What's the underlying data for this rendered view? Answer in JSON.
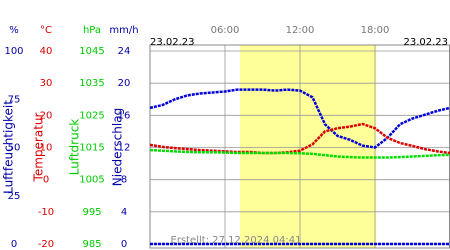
{
  "chart_data": {
    "type": "line",
    "date_start": "23.02.23",
    "date_end": "23.02.23",
    "footer": "Erstellt: 27.12.2024 04:41",
    "xlim": [
      0,
      24
    ],
    "xticks": [
      {
        "value": 6,
        "label": "06:00"
      },
      {
        "value": 12,
        "label": "12:00"
      },
      {
        "value": 18,
        "label": "18:00"
      }
    ],
    "daylight": [
      7.2,
      18.1
    ],
    "grid": true,
    "x": [
      0,
      1,
      2,
      3,
      4,
      5,
      6,
      7,
      8,
      9,
      10,
      11,
      12,
      13,
      14,
      15,
      16,
      17,
      18,
      19,
      20,
      21,
      22,
      23,
      24
    ],
    "y_axes": [
      {
        "unit": "%",
        "color": "#0000aa",
        "ylim": [
          0,
          100
        ],
        "yticks": [
          0,
          25,
          50,
          75,
          100
        ]
      },
      {
        "unit": "°C",
        "color": "#dd0000",
        "ylim": [
          -20,
          40
        ],
        "yticks": [
          -20,
          -10,
          0,
          10,
          20,
          30,
          40
        ]
      },
      {
        "unit": "hPa",
        "color": "#00cc00",
        "ylim": [
          985,
          1045
        ],
        "yticks": [
          985,
          995,
          1005,
          1015,
          1025,
          1035,
          1045
        ]
      },
      {
        "unit": "mm/h",
        "color": "#0000aa",
        "ylim": [
          0,
          24
        ],
        "yticks": [
          0,
          4,
          8,
          12,
          16,
          20,
          24
        ]
      }
    ],
    "series": [
      {
        "name": "Luftfeuchtigkeit",
        "color": "#0000dd",
        "axis": 0,
        "values": [
          70.5,
          72,
          75,
          77,
          78,
          78.5,
          79,
          80,
          80,
          80,
          79.5,
          80,
          79.5,
          76,
          62,
          56,
          54,
          51,
          50,
          55,
          62,
          65,
          67,
          69,
          70.5
        ]
      },
      {
        "name": "Temperatur",
        "color": "#dd0000",
        "axis": 1,
        "values": [
          10.8,
          10.2,
          9.8,
          9.5,
          9.2,
          9,
          8.8,
          8.6,
          8.6,
          8.3,
          8.3,
          8.5,
          9,
          11,
          15,
          16,
          16.5,
          17.3,
          16,
          13,
          11.4,
          10.5,
          9.5,
          8.8,
          8.3
        ]
      },
      {
        "name": "Luftdruck",
        "color": "#00dd00",
        "axis": 2,
        "values": [
          1014.2,
          1014,
          1013.8,
          1013.6,
          1013.5,
          1013.5,
          1013.4,
          1013.3,
          1013.3,
          1013.3,
          1013.3,
          1013.3,
          1013.2,
          1013,
          1012.6,
          1012.2,
          1012,
          1011.9,
          1011.9,
          1011.9,
          1012,
          1012.2,
          1012.4,
          1012.6,
          1012.7
        ]
      },
      {
        "name": "Niederschlag",
        "color": "#0000dd",
        "axis": 3,
        "values": [
          0,
          0,
          0,
          0,
          0,
          0,
          0,
          0,
          0,
          0,
          0,
          0,
          0,
          0,
          0,
          0,
          0,
          0,
          0,
          0,
          0,
          0,
          0,
          0,
          0
        ]
      }
    ]
  }
}
